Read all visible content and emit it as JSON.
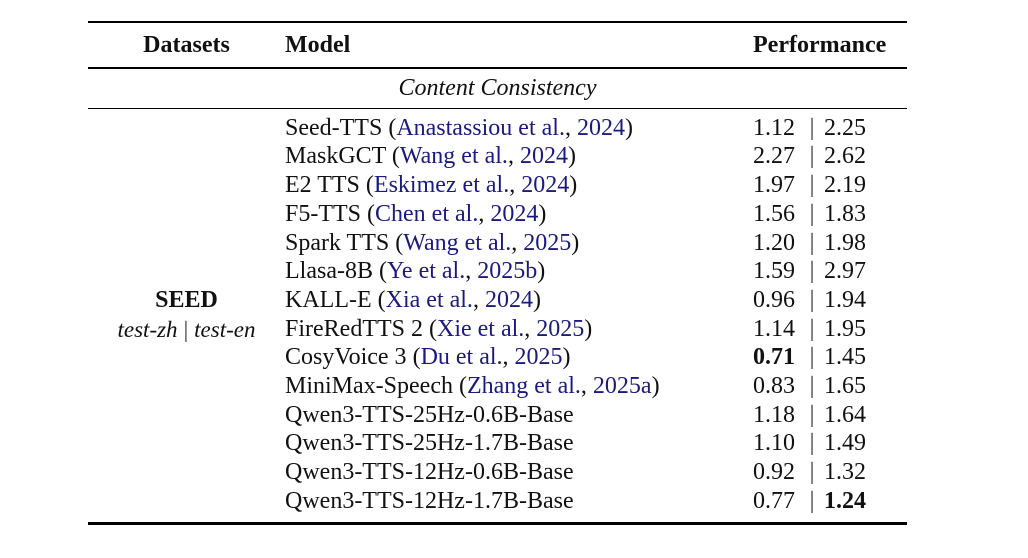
{
  "colors": {
    "text": "#111111",
    "citation": "#1a1a80",
    "rule": "#000000"
  },
  "table": {
    "headers": {
      "datasets": "Datasets",
      "model": "Model",
      "performance": "Performance"
    },
    "section_title": "Content Consistency",
    "dataset": {
      "name": "SEED",
      "subset_zh": "test-zh",
      "subset_en": "test-en",
      "separator": "|"
    },
    "value_separator": "|",
    "rows": [
      {
        "model": "Seed-TTS",
        "cite_authors": "Anastassiou et al.",
        "cite_year": "2024",
        "zh": "1.12",
        "en": "2.25",
        "zh_bold": false,
        "en_bold": false
      },
      {
        "model": "MaskGCT",
        "cite_authors": "Wang et al.",
        "cite_year": "2024",
        "zh": "2.27",
        "en": "2.62",
        "zh_bold": false,
        "en_bold": false
      },
      {
        "model": "E2 TTS",
        "cite_authors": "Eskimez et al.",
        "cite_year": "2024",
        "zh": "1.97",
        "en": "2.19",
        "zh_bold": false,
        "en_bold": false
      },
      {
        "model": "F5-TTS",
        "cite_authors": "Chen et al.",
        "cite_year": "2024",
        "zh": "1.56",
        "en": "1.83",
        "zh_bold": false,
        "en_bold": false
      },
      {
        "model": "Spark TTS",
        "cite_authors": "Wang et al.",
        "cite_year": "2025",
        "zh": "1.20",
        "en": "1.98",
        "zh_bold": false,
        "en_bold": false
      },
      {
        "model": "Llasa-8B",
        "cite_authors": "Ye et al.",
        "cite_year": "2025b",
        "zh": "1.59",
        "en": "2.97",
        "zh_bold": false,
        "en_bold": false
      },
      {
        "model": "KALL-E",
        "cite_authors": "Xia et al.",
        "cite_year": "2024",
        "zh": "0.96",
        "en": "1.94",
        "zh_bold": false,
        "en_bold": false
      },
      {
        "model": "FireRedTTS 2",
        "cite_authors": "Xie et al.",
        "cite_year": "2025",
        "zh": "1.14",
        "en": "1.95",
        "zh_bold": false,
        "en_bold": false
      },
      {
        "model": "CosyVoice 3",
        "cite_authors": "Du et al.",
        "cite_year": "2025",
        "zh": "0.71",
        "en": "1.45",
        "zh_bold": true,
        "en_bold": false
      },
      {
        "model": "MiniMax-Speech",
        "cite_authors": "Zhang et al.",
        "cite_year": "2025a",
        "zh": "0.83",
        "en": "1.65",
        "zh_bold": false,
        "en_bold": false
      },
      {
        "model": "Qwen3-TTS-25Hz-0.6B-Base",
        "cite_authors": null,
        "cite_year": null,
        "zh": "1.18",
        "en": "1.64",
        "zh_bold": false,
        "en_bold": false
      },
      {
        "model": "Qwen3-TTS-25Hz-1.7B-Base",
        "cite_authors": null,
        "cite_year": null,
        "zh": "1.10",
        "en": "1.49",
        "zh_bold": false,
        "en_bold": false
      },
      {
        "model": "Qwen3-TTS-12Hz-0.6B-Base",
        "cite_authors": null,
        "cite_year": null,
        "zh": "0.92",
        "en": "1.32",
        "zh_bold": false,
        "en_bold": false
      },
      {
        "model": "Qwen3-TTS-12Hz-1.7B-Base",
        "cite_authors": null,
        "cite_year": null,
        "zh": "0.77",
        "en": "1.24",
        "zh_bold": false,
        "en_bold": true
      }
    ]
  }
}
